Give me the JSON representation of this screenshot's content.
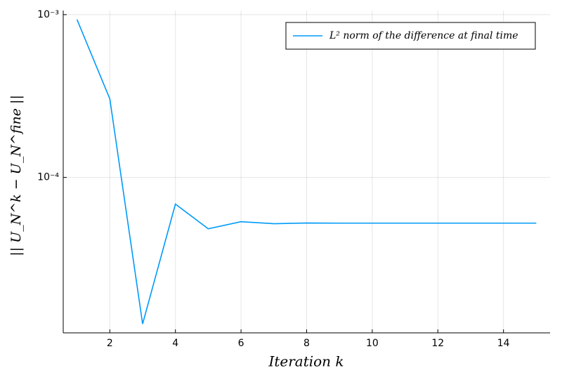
{
  "chart_data": {
    "type": "line",
    "x_label": "Iteration k",
    "y_label": "|| U_N^k − U_N^fine ||",
    "x": [
      1,
      2,
      3,
      4,
      5,
      6,
      7,
      8,
      9,
      10,
      11,
      12,
      13,
      14,
      15
    ],
    "series": [
      {
        "name": "L² norm of the difference at final time",
        "color": "#009af9",
        "values": [
          0.000933,
          0.000304,
          1.26e-05,
          6.86e-05,
          4.84e-05,
          5.35e-05,
          5.2e-05,
          5.25e-05,
          5.24e-05,
          5.24e-05,
          5.24e-05,
          5.24e-05,
          5.24e-05,
          5.24e-05,
          5.24e-05
        ]
      }
    ],
    "xlim": [
      0.58,
      15.42
    ],
    "xticks": [
      2,
      4,
      6,
      8,
      10,
      12,
      14
    ],
    "ylim": [
      1.11e-05,
      0.00106
    ],
    "yscale": "log",
    "yticks": [
      {
        "value": 0.001,
        "label": "10⁻³"
      },
      {
        "value": 0.0001,
        "label": "10⁻⁴"
      }
    ],
    "grid": true,
    "legend": "top-right"
  }
}
